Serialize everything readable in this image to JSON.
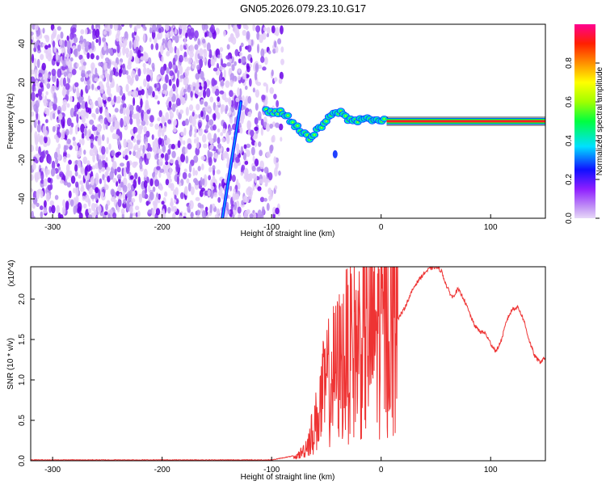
{
  "title": "GN05.2026.079.23.10.G17",
  "chart_data": [
    {
      "type": "heatmap",
      "name": "spectrogram",
      "xlabel": "Height of straight line (km)",
      "ylabel": "Frequency (Hz)",
      "xlim": [
        -320,
        150
      ],
      "ylim": [
        -50,
        50
      ],
      "x_ticks": [
        -300,
        -200,
        -100,
        0,
        100
      ],
      "y_ticks": [
        -40,
        -20,
        0,
        20,
        40
      ],
      "colorbar": {
        "label": "Normalized spectral amplitude",
        "range": [
          0,
          1
        ],
        "ticks": [
          0.0,
          0.2,
          0.4,
          0.6,
          0.8
        ],
        "colormap": [
          "#e8d8f8",
          "#7f00ff",
          "#0000ff",
          "#00ffff",
          "#00ff00",
          "#ffff00",
          "#ff8000",
          "#ff0000",
          "#ff00a0"
        ]
      },
      "noise_region_x": [
        -320,
        -90
      ],
      "steep_streak": {
        "x": [
          -145,
          -128
        ],
        "y": [
          -50,
          10
        ]
      },
      "ridge": {
        "x": [
          -105,
          -95,
          -90,
          -85,
          -80,
          -75,
          -70,
          -65,
          -60,
          -55,
          -50,
          -45,
          -40,
          -35,
          -30,
          -25,
          -20,
          -15,
          -10,
          -5,
          0,
          150
        ],
        "y": [
          5,
          5,
          4,
          2,
          -1,
          -4,
          -7,
          -9,
          -6,
          -3,
          0,
          3,
          5,
          4,
          1,
          0,
          1,
          2,
          1,
          0.5,
          0,
          0
        ]
      },
      "isolated_blob": {
        "x": -42,
        "y": -17
      }
    },
    {
      "type": "line",
      "name": "snr",
      "xlabel": "Height of straight line (km)",
      "ylabel": "SNR (10 * v/v)",
      "y_multiplier": "(x10^4)",
      "xlim": [
        -320,
        150
      ],
      "ylim": [
        0,
        2.4
      ],
      "x_ticks": [
        -300,
        -200,
        -100,
        0,
        100
      ],
      "y_ticks": [
        0.0,
        0.5,
        1.0,
        1.5,
        2.0
      ],
      "y_tick_labels": [
        "0.0",
        "0.5",
        "1.0",
        "1.5",
        "2.0"
      ],
      "color": "#ee3333",
      "series_envelope": {
        "x": [
          -320,
          -100,
          -80,
          -70,
          -60,
          -50,
          -45,
          -40,
          -35,
          -30,
          -25,
          -20,
          -15,
          -10,
          -5,
          0,
          5,
          10,
          15,
          20,
          25,
          30,
          35,
          40,
          45,
          50,
          55,
          60,
          65,
          70,
          75,
          80,
          85,
          90,
          95,
          100,
          105,
          110,
          115,
          120,
          125,
          130,
          135,
          140,
          145,
          150
        ],
        "y": [
          0.01,
          0.01,
          0.06,
          0.2,
          0.5,
          0.9,
          1.0,
          1.1,
          1.2,
          1.3,
          1.35,
          1.4,
          1.45,
          1.5,
          1.55,
          1.6,
          1.65,
          1.7,
          1.75,
          1.85,
          2.0,
          2.15,
          2.25,
          2.33,
          2.38,
          2.4,
          2.35,
          2.15,
          2.02,
          2.12,
          2.02,
          1.85,
          1.68,
          1.6,
          1.58,
          1.45,
          1.35,
          1.5,
          1.75,
          1.88,
          1.9,
          1.75,
          1.5,
          1.3,
          1.22,
          1.28
        ]
      },
      "noisy_region_x": [
        -80,
        15
      ]
    }
  ]
}
